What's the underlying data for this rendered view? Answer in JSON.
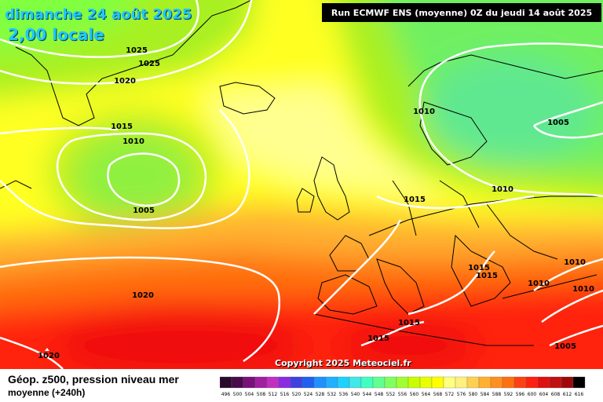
{
  "header": {
    "date": "dimanche 24 août 2025",
    "time": "2,00 locale",
    "run": "Run ECMWF ENS (moyenne) 0Z du jeudi 14 août 2025"
  },
  "footer": {
    "title": "Géop. z500, pression niveau mer",
    "subtitle": "moyenne   (+240h)",
    "copyright": "Copyright 2025 Meteociel.fr"
  },
  "isobar_labels": [
    "1025",
    "1025",
    "1020",
    "1015",
    "1010",
    "1005",
    "1020",
    "1020",
    "1010",
    "1005",
    "1010",
    "1015",
    "1015",
    "1015",
    "1010",
    "1010",
    "1010",
    "1015",
    "1015",
    "1005"
  ],
  "scale": {
    "labels": [
      "496",
      "500",
      "504",
      "508",
      "512",
      "516",
      "520",
      "524",
      "528",
      "532",
      "536",
      "540",
      "544",
      "548",
      "552",
      "556",
      "560",
      "564",
      "568",
      "572",
      "576",
      "580",
      "584",
      "588",
      "592",
      "596",
      "600",
      "604",
      "608",
      "612",
      "616"
    ],
    "colors": [
      "#2a0a2a",
      "#4b0a4b",
      "#7a107a",
      "#a020a0",
      "#c030c0",
      "#8a2be2",
      "#4040e0",
      "#2060f0",
      "#2090ff",
      "#20b0ff",
      "#20d0ff",
      "#40e8e8",
      "#40ffc0",
      "#60ff90",
      "#80ff60",
      "#a0ff30",
      "#c8ff00",
      "#e8ff00",
      "#ffff00",
      "#ffff80",
      "#fff080",
      "#ffd050",
      "#ffb030",
      "#ff9020",
      "#ff7010",
      "#ff4010",
      "#ff2010",
      "#e01010",
      "#c01010",
      "#a00808",
      "#000000"
    ]
  }
}
